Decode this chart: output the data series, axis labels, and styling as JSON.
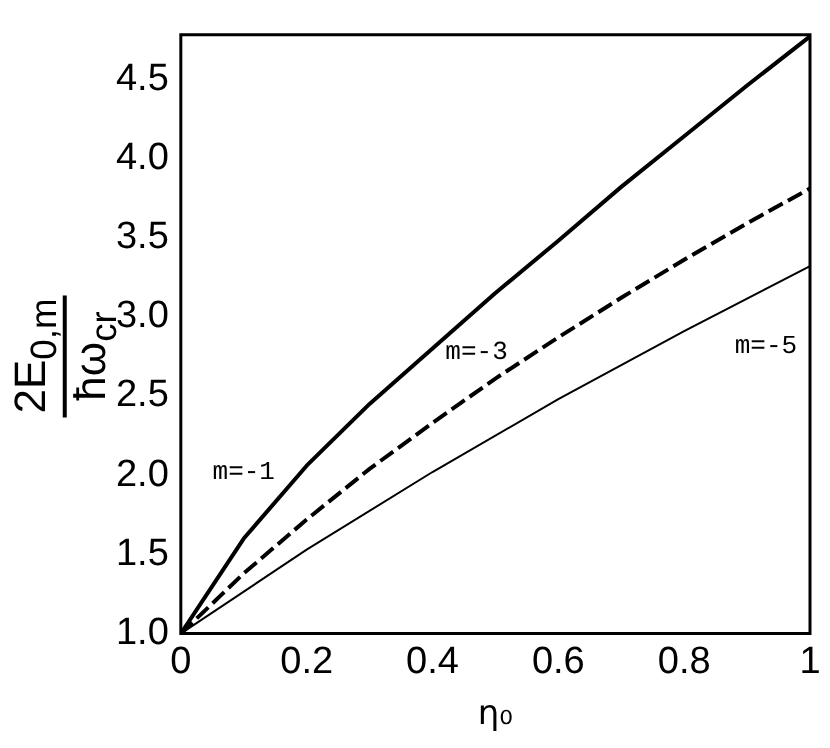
{
  "chart_data": {
    "type": "line",
    "xlabel": "η₀",
    "ylabel": "2E$_{0,m}$ ħω$_{cr}$",
    "xlim": [
      0,
      1
    ],
    "xticks": [
      0,
      {
        "value": 0.2,
        "label": "0.2"
      },
      {
        "value": 0.4,
        "label": "0.4"
      },
      {
        "value": 0.6,
        "label": "0.6"
      },
      {
        "value": 0.8,
        "label": "0.8"
      },
      1
    ],
    "ylim": [
      1,
      4.78
    ],
    "yticks": [
      {
        "value": 1,
        "label": "1.0"
      },
      {
        "value": 1.5,
        "label": "1.5"
      },
      {
        "value": 2,
        "label": "2.0"
      },
      {
        "value": 2.5,
        "label": "2.5"
      },
      {
        "value": 3,
        "label": "3.0"
      },
      {
        "value": 3.5,
        "label": "3.5"
      },
      {
        "value": 4,
        "label": "4.0"
      },
      {
        "value": 4.5,
        "label": "4.5"
      }
    ],
    "grid": false,
    "legend": false,
    "marker": "none",
    "series": [
      {
        "name": "m=-1",
        "color": "#000000",
        "line_style": "solid",
        "x": [
          0,
          0.1,
          0.2,
          0.3,
          0.4,
          0.5,
          0.6,
          0.7,
          0.8,
          0.9,
          1
        ],
        "values": [
          1,
          1.6,
          2.06,
          2.45,
          2.8,
          3.15,
          3.48,
          3.82,
          4.14,
          4.46,
          4.77
        ]
      },
      {
        "name": "m=-3",
        "color": "#000000",
        "line_style": "dashed",
        "x": [
          0,
          0.1,
          0.2,
          0.3,
          0.4,
          0.5,
          0.6,
          0.7,
          0.8,
          0.9,
          1
        ],
        "values": [
          1,
          1.38,
          1.72,
          2.04,
          2.33,
          2.61,
          2.87,
          3.12,
          3.36,
          3.59,
          3.81
        ]
      },
      {
        "name": "m=-5",
        "color": "#000000",
        "line_style": "solid",
        "x": [
          0,
          0.2,
          0.4,
          0.6,
          0.8,
          1
        ],
        "values": [
          1,
          1.53,
          2.02,
          2.48,
          2.91,
          3.32
        ]
      }
    ]
  }
}
